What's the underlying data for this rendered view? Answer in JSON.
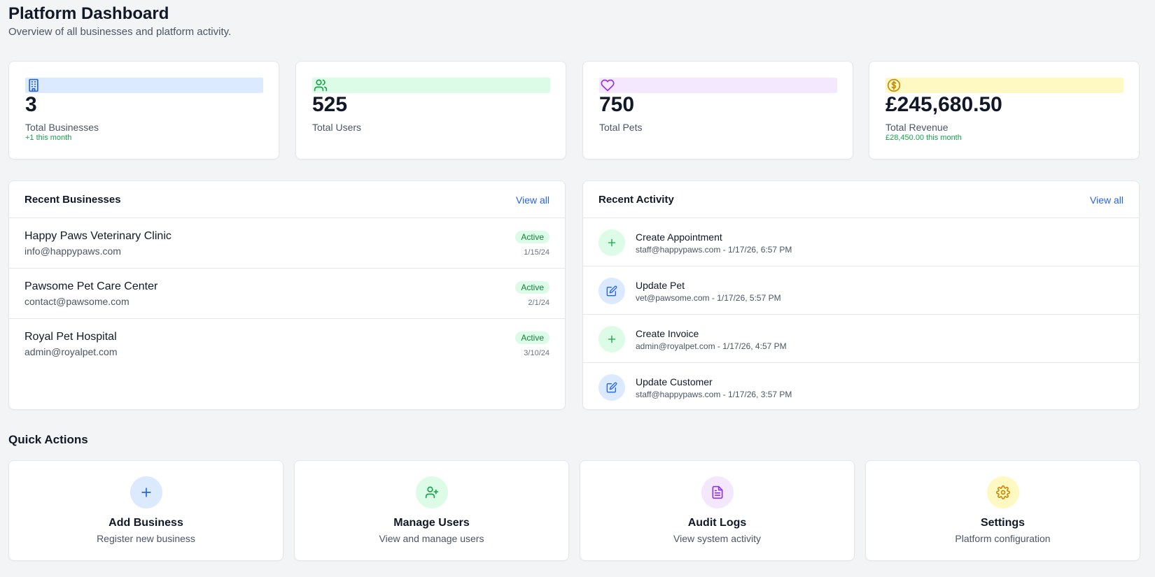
{
  "header": {
    "title": "Platform Dashboard",
    "subtitle": "Overview of all businesses and platform activity."
  },
  "stats": [
    {
      "icon": "building-icon",
      "color": "#2563eb",
      "band_color": "#dbeafe",
      "value": "3",
      "label": "Total Businesses",
      "note": "+1 this month"
    },
    {
      "icon": "users-icon",
      "color": "#16a34a",
      "band_color": "#dcfce7",
      "value": "525",
      "label": "Total Users",
      "note": ""
    },
    {
      "icon": "heart-icon",
      "color": "#9333ea",
      "band_color": "#f3e8ff",
      "value": "750",
      "label": "Total Pets",
      "note": ""
    },
    {
      "icon": "dollar-icon",
      "color": "#ca8a04",
      "band_color": "#fef9c3",
      "value": "£245,680.50",
      "label": "Total Revenue",
      "note": "£28,450.00 this month"
    }
  ],
  "recent_businesses": {
    "title": "Recent Businesses",
    "view_all": "View all",
    "items": [
      {
        "name": "Happy Paws Veterinary Clinic",
        "email": "info@happypaws.com",
        "status": "Active",
        "date": "1/15/24"
      },
      {
        "name": "Pawsome Pet Care Center",
        "email": "contact@pawsome.com",
        "status": "Active",
        "date": "2/1/24"
      },
      {
        "name": "Royal Pet Hospital",
        "email": "admin@royalpet.com",
        "status": "Active",
        "date": "3/10/24"
      }
    ]
  },
  "recent_activity": {
    "title": "Recent Activity",
    "view_all": "View all",
    "items": [
      {
        "icon": "plus-icon",
        "title": "Create Appointment",
        "sub": "staff@happypaws.com - 1/17/26, 6:57 PM"
      },
      {
        "icon": "edit-icon",
        "title": "Update Pet",
        "sub": "vet@pawsome.com - 1/17/26, 5:57 PM"
      },
      {
        "icon": "plus-icon",
        "title": "Create Invoice",
        "sub": "admin@royalpet.com - 1/17/26, 4:57 PM"
      },
      {
        "icon": "edit-icon",
        "title": "Update Customer",
        "sub": "staff@happypaws.com - 1/17/26, 3:57 PM"
      }
    ]
  },
  "quick_actions": {
    "title": "Quick Actions",
    "items": [
      {
        "icon": "plus-icon",
        "color": "#2563eb",
        "bg": "#dbeafe",
        "label": "Add Business",
        "desc": "Register new business"
      },
      {
        "icon": "user-plus-icon",
        "color": "#16a34a",
        "bg": "#dcfce7",
        "label": "Manage Users",
        "desc": "View and manage users"
      },
      {
        "icon": "file-icon",
        "color": "#9333ea",
        "bg": "#f3e8ff",
        "label": "Audit Logs",
        "desc": "View system activity"
      },
      {
        "icon": "gear-icon",
        "color": "#ca8a04",
        "bg": "#fef9c3",
        "label": "Settings",
        "desc": "Platform configuration"
      }
    ]
  },
  "colors": {
    "accent": "#2563eb",
    "success": "#16a34a",
    "create_bg": "#dcfce7",
    "update_bg": "#dbeafe"
  }
}
